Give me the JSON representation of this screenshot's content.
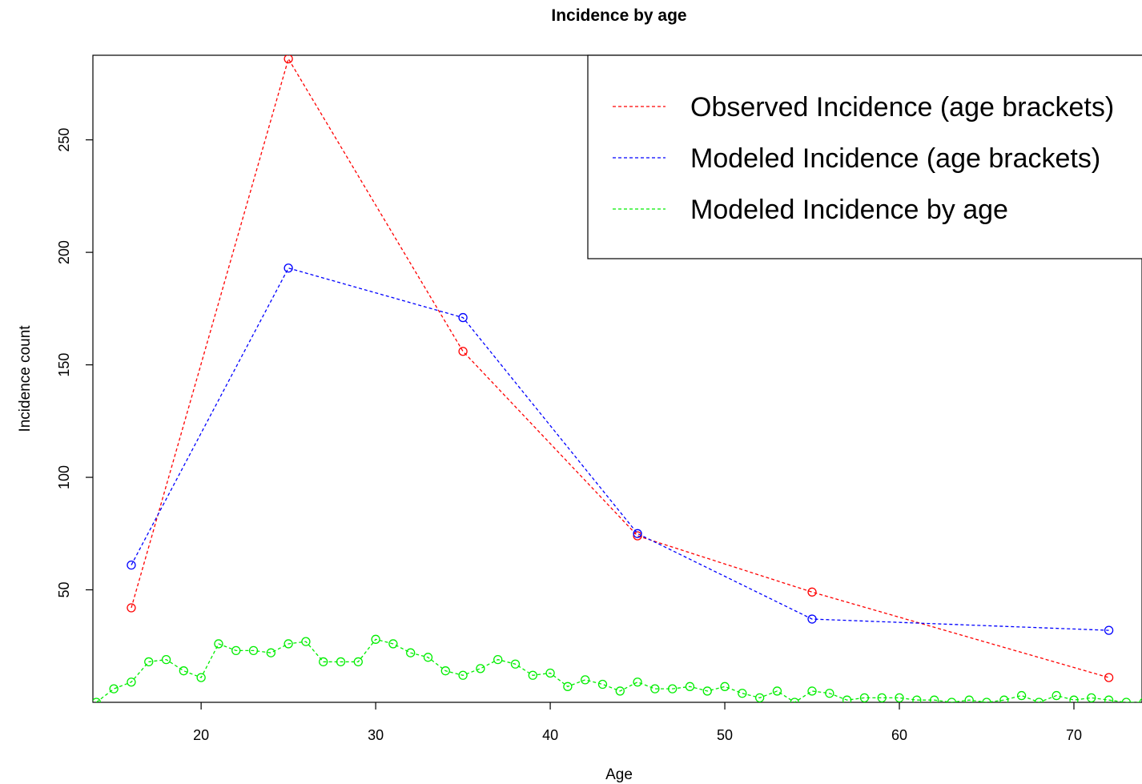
{
  "chart_data": {
    "type": "line",
    "title": "Incidence by age",
    "xlabel": "Age",
    "ylabel": "Incidence count",
    "xlim": [
      13.8,
      73.9
    ],
    "ylim": [
      0,
      287.6
    ],
    "xticks": [
      20,
      30,
      40,
      50,
      60,
      70
    ],
    "yticks": [
      50,
      100,
      150,
      200,
      250
    ],
    "grid": false,
    "legend_position": "top-right",
    "series": [
      {
        "name": "Observed Incidence (age brackets)",
        "color": "#ff0000",
        "line_style": "dashed",
        "marker": "open-circle",
        "x": [
          16,
          25,
          35,
          45,
          55,
          72
        ],
        "y": [
          42,
          286,
          156,
          74,
          49,
          11
        ]
      },
      {
        "name": "Modeled Incidence (age brackets)",
        "color": "#0000ff",
        "line_style": "dashed",
        "marker": "open-circle",
        "x": [
          16,
          25,
          35,
          45,
          55,
          72
        ],
        "y": [
          61,
          193,
          171,
          75,
          37,
          32
        ]
      },
      {
        "name": "Modeled Incidence by age",
        "color": "#00ee00",
        "line_style": "dashed",
        "marker": "open-circle",
        "x": [
          14,
          15,
          16,
          17,
          18,
          19,
          20,
          21,
          22,
          23,
          24,
          25,
          26,
          27,
          28,
          29,
          30,
          31,
          32,
          33,
          34,
          35,
          36,
          37,
          38,
          39,
          40,
          41,
          42,
          43,
          44,
          45,
          46,
          47,
          48,
          49,
          50,
          51,
          52,
          53,
          54,
          55,
          56,
          57,
          58,
          59,
          60,
          61,
          62,
          63,
          64,
          65,
          66,
          67,
          68,
          69,
          70,
          71,
          72,
          73,
          74
        ],
        "y": [
          0,
          6,
          9,
          18,
          19,
          14,
          11,
          26,
          23,
          23,
          22,
          26,
          27,
          18,
          18,
          18,
          28,
          26,
          22,
          20,
          14,
          12,
          15,
          19,
          17,
          12,
          13,
          7,
          10,
          8,
          5,
          9,
          6,
          6,
          7,
          5,
          7,
          4,
          2,
          5,
          0,
          5,
          4,
          1,
          2,
          2,
          2,
          1,
          1,
          0,
          1,
          0,
          1,
          3,
          0,
          3,
          1,
          2,
          1,
          0,
          0
        ]
      }
    ]
  }
}
